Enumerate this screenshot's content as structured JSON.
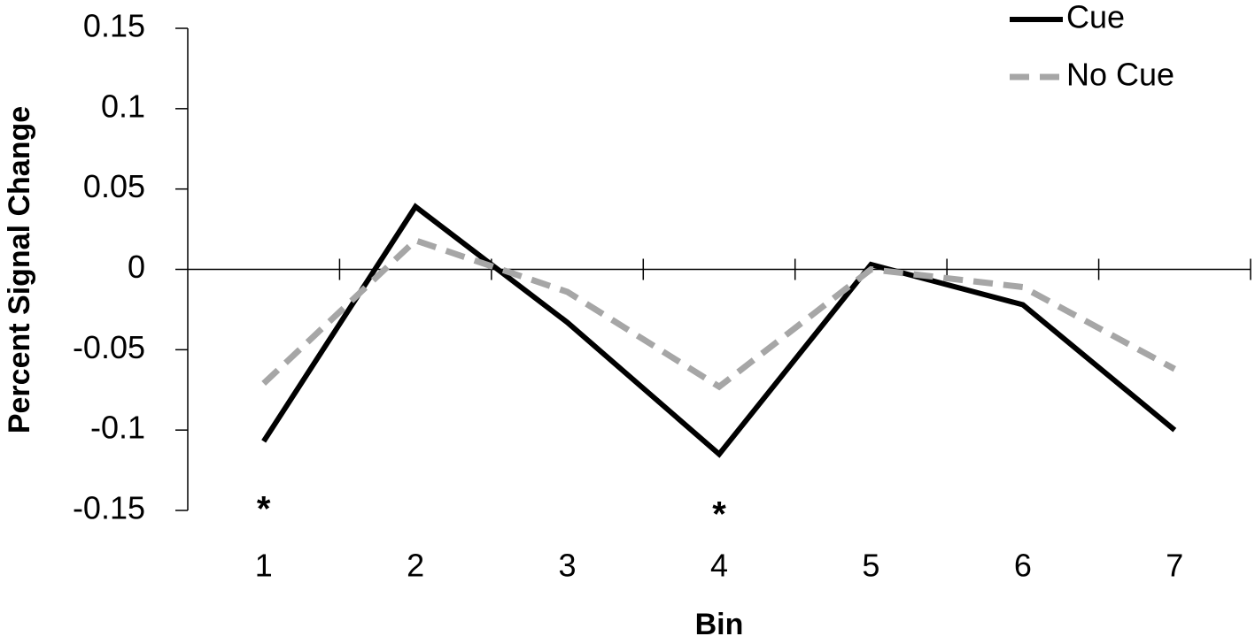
{
  "chart_data": {
    "type": "line",
    "x_label": "Bin",
    "y_label": "Percent Signal Change",
    "categories": [
      "1",
      "2",
      "3",
      "4",
      "5",
      "6",
      "7"
    ],
    "series": [
      {
        "name": "Cue",
        "color": "#000000",
        "dash": "solid",
        "values": [
          -0.107,
          0.039,
          -0.033,
          -0.115,
          0.003,
          -0.022,
          -0.1
        ]
      },
      {
        "name": "No Cue",
        "color": "#a6a6a6",
        "dash": "dashed",
        "values": [
          -0.071,
          0.018,
          -0.014,
          -0.073,
          0,
          -0.011,
          -0.062
        ]
      }
    ],
    "ylim": [
      -0.15,
      0.15
    ],
    "yticks": [
      -0.15,
      -0.1,
      -0.05,
      0,
      0.05,
      0.1,
      0.15
    ],
    "annotations": [
      {
        "text": "*",
        "x": "1"
      },
      {
        "text": "*",
        "x": "4"
      }
    ],
    "legend": "top-right"
  }
}
